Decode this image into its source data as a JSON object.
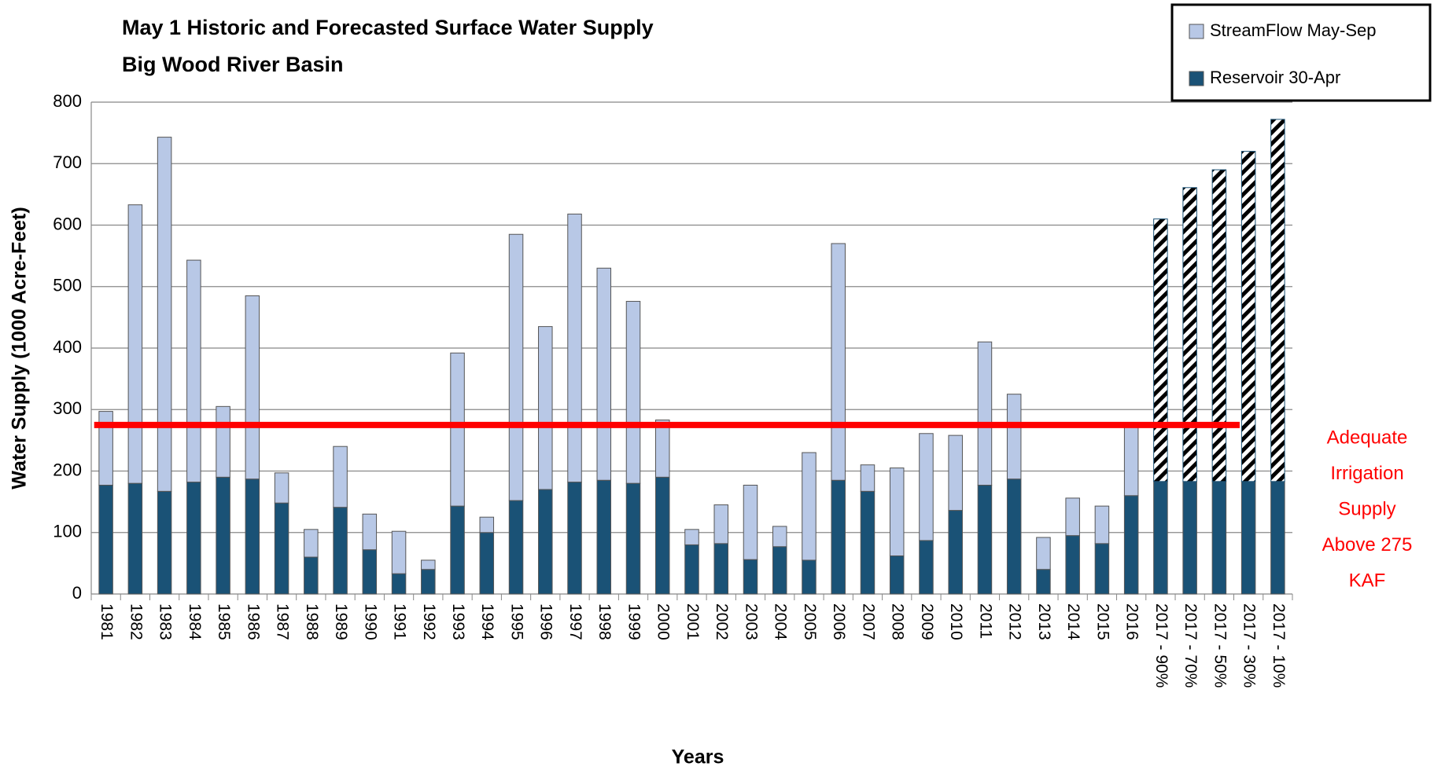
{
  "chart_data": {
    "type": "stacked_bar",
    "title": "May 1 Historic and Forecasted Surface Water Supply",
    "subtitle": "Big Wood River Basin",
    "y_label": "Water Supply (1000 Acre-Feet)",
    "x_label": "Years",
    "categories": [
      "1981",
      "1982",
      "1983",
      "1984",
      "1985",
      "1986",
      "1987",
      "1988",
      "1989",
      "1990",
      "1991",
      "1992",
      "1993",
      "1994",
      "1995",
      "1996",
      "1997",
      "1998",
      "1999",
      "2000",
      "2001",
      "2002",
      "2003",
      "2004",
      "2005",
      "2006",
      "2007",
      "2008",
      "2009",
      "2010",
      "2011",
      "2012",
      "2013",
      "2014",
      "2015",
      "2016",
      "2017 - 90%",
      "2017 - 70%",
      "2017 - 50%",
      "2017 - 30%",
      "2017 - 10%"
    ],
    "series": [
      {
        "name": "Reservoir 30-Apr",
        "color": "#1a5276",
        "values": [
          177,
          180,
          167,
          182,
          190,
          187,
          148,
          60,
          141,
          72,
          33,
          40,
          143,
          100,
          152,
          170,
          182,
          185,
          180,
          190,
          80,
          82,
          56,
          77,
          55,
          185,
          167,
          62,
          87,
          136,
          177,
          187,
          40,
          95,
          82,
          160,
          183,
          183,
          183,
          183,
          183
        ]
      },
      {
        "name": "StreamFlow May-Sep",
        "color": "#b8c8e6",
        "values": [
          120,
          453,
          576,
          361,
          115,
          298,
          49,
          45,
          99,
          58,
          69,
          15,
          249,
          25,
          433,
          265,
          436,
          345,
          296,
          93,
          25,
          63,
          121,
          33,
          175,
          385,
          43,
          143,
          174,
          122,
          233,
          138,
          52,
          61,
          61,
          115,
          427,
          478,
          507,
          537,
          589
        ],
        "hatched": [
          false,
          false,
          false,
          false,
          false,
          false,
          false,
          false,
          false,
          false,
          false,
          false,
          false,
          false,
          false,
          false,
          false,
          false,
          false,
          false,
          false,
          false,
          false,
          false,
          false,
          false,
          false,
          false,
          false,
          false,
          false,
          false,
          false,
          false,
          false,
          false,
          true,
          true,
          true,
          true,
          true
        ]
      }
    ],
    "ylim": [
      0,
      800
    ],
    "yticks": [
      0,
      100,
      200,
      300,
      400,
      500,
      600,
      700,
      800
    ],
    "grid": true,
    "legend": "top-right",
    "reference_line": {
      "value": 275,
      "color": "#ff0000",
      "label_lines": [
        "Adequate",
        "Irrigation",
        "Supply",
        "Above 275",
        "KAF"
      ]
    }
  }
}
